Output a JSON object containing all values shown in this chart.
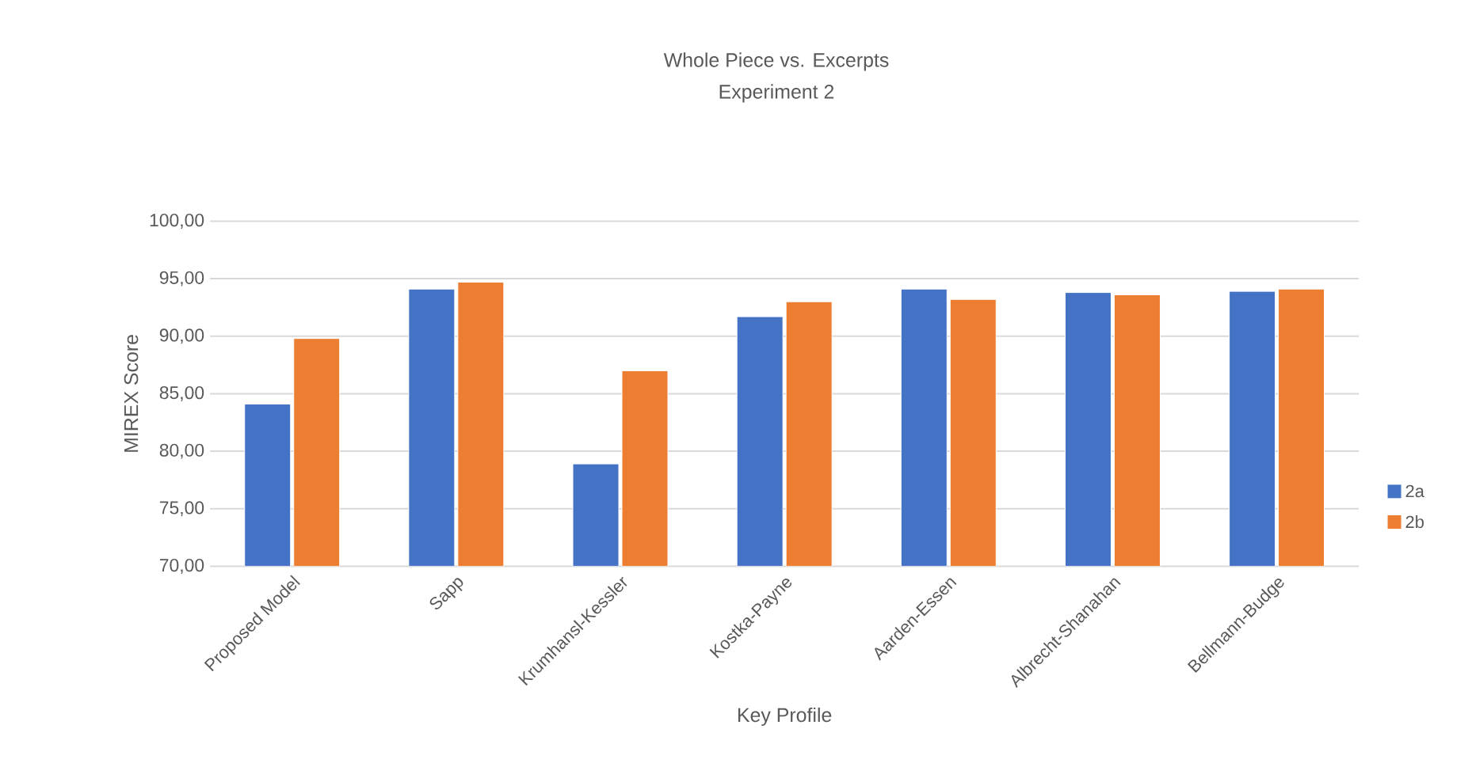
{
  "chart_data": {
    "type": "bar",
    "title": "Whole Piece vs. Excerpts",
    "subtitle": "Experiment 2",
    "xlabel": "Key Profile",
    "ylabel": "MIREX Score",
    "categories": [
      "Proposed Model",
      "Sapp",
      "Krumhansl-Kessler",
      "Kostka-Payne",
      "Aarden-Essen",
      "Albrecht-Shanahan",
      "Bellmann-Budge"
    ],
    "series": [
      {
        "name": "2a",
        "color": "#4472c4",
        "values": [
          84.1,
          94.1,
          78.9,
          91.7,
          94.1,
          93.8,
          93.9
        ]
      },
      {
        "name": "2b",
        "color": "#ed7d31",
        "values": [
          89.8,
          94.7,
          87.0,
          93.0,
          93.2,
          93.6,
          94.1
        ]
      }
    ],
    "ylim": [
      70,
      100
    ],
    "yticks": [
      {
        "value": 70,
        "label": "70,00"
      },
      {
        "value": 75,
        "label": "75,00"
      },
      {
        "value": 80,
        "label": "80,00"
      },
      {
        "value": 85,
        "label": "85,00"
      },
      {
        "value": 90,
        "label": "90,00"
      },
      {
        "value": 95,
        "label": "95,00"
      },
      {
        "value": 100,
        "label": "100,00"
      }
    ],
    "grid": "y",
    "legend": "right"
  }
}
